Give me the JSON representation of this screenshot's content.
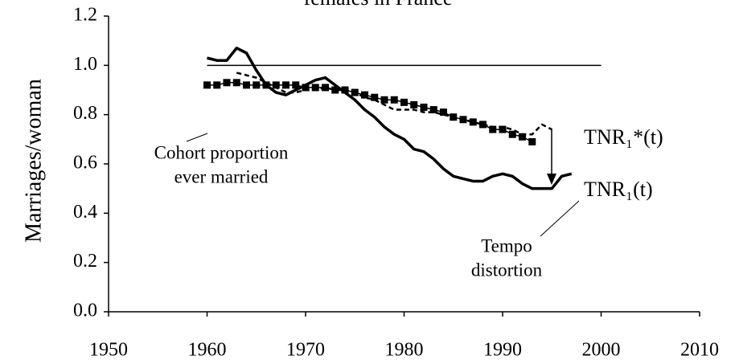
{
  "chart_data": {
    "type": "line",
    "title": "females in France",
    "ylabel": "Marriages/woman",
    "xlim": [
      1950,
      2010
    ],
    "xticks": [
      1950,
      1960,
      1970,
      1980,
      1990,
      2000,
      2010
    ],
    "ylim": [
      0,
      1.2
    ],
    "yticks": [
      {
        "value": 0,
        "label": "0.0"
      },
      0.2,
      0.4,
      0.6,
      0.8,
      {
        "value": 1,
        "label": "1.0"
      },
      1.2
    ],
    "series": [
      {
        "color": "#000000",
        "width": 1.5,
        "x": [
          1960,
          2000
        ],
        "values": [
          1,
          1
        ]
      },
      {
        "name": "TNR₁(t)",
        "color": "#000000",
        "width": 3.5,
        "x": [
          1960,
          1961,
          1962,
          1963,
          1964,
          1965,
          1966,
          1967,
          1968,
          1969,
          1970,
          1971,
          1972,
          1973,
          1974,
          1975,
          1976,
          1977,
          1978,
          1979,
          1980,
          1981,
          1982,
          1983,
          1984,
          1985,
          1986,
          1987,
          1988,
          1989,
          1990,
          1991,
          1992,
          1993,
          1994,
          1995,
          1996,
          1997
        ],
        "values": [
          1.03,
          1.02,
          1.02,
          1.07,
          1.05,
          0.98,
          0.92,
          0.89,
          0.88,
          0.9,
          0.92,
          0.94,
          0.95,
          0.92,
          0.89,
          0.86,
          0.82,
          0.79,
          0.75,
          0.72,
          0.7,
          0.66,
          0.65,
          0.62,
          0.58,
          0.55,
          0.54,
          0.53,
          0.53,
          0.55,
          0.56,
          0.55,
          0.52,
          0.5,
          0.5,
          0.5,
          0.55,
          0.56
        ]
      },
      {
        "name": "TNR₁*(t)",
        "color": "#000000",
        "width": 2.5,
        "dash": true,
        "x": [
          1963,
          1964,
          1965,
          1966,
          1967,
          1968,
          1969,
          1970,
          1971,
          1972,
          1973,
          1974,
          1975,
          1976,
          1977,
          1978,
          1979,
          1980,
          1981,
          1982,
          1983,
          1984,
          1985,
          1986,
          1987,
          1988,
          1989,
          1990,
          1991,
          1992,
          1993,
          1994,
          1995
        ],
        "values": [
          0.97,
          0.96,
          0.95,
          0.93,
          0.91,
          0.89,
          0.89,
          0.9,
          0.9,
          0.91,
          0.9,
          0.9,
          0.89,
          0.87,
          0.86,
          0.84,
          0.82,
          0.82,
          0.82,
          0.81,
          0.81,
          0.8,
          0.79,
          0.78,
          0.77,
          0.76,
          0.75,
          0.75,
          0.74,
          0.72,
          0.72,
          0.76,
          0.74
        ]
      },
      {
        "color": "#000000",
        "width": 1.5,
        "marker": "square",
        "x": [
          1960,
          1961,
          1962,
          1963,
          1964,
          1965,
          1966,
          1967,
          1968,
          1969,
          1970,
          1971,
          1972,
          1973,
          1974,
          1975,
          1976,
          1977,
          1978,
          1979,
          1980,
          1981,
          1982,
          1983,
          1984,
          1985,
          1986,
          1987,
          1988,
          1989,
          1990,
          1991,
          1992,
          1993
        ],
        "values": [
          0.92,
          0.92,
          0.93,
          0.93,
          0.92,
          0.92,
          0.92,
          0.92,
          0.92,
          0.92,
          0.91,
          0.91,
          0.91,
          0.9,
          0.9,
          0.89,
          0.88,
          0.87,
          0.86,
          0.86,
          0.85,
          0.84,
          0.83,
          0.82,
          0.81,
          0.79,
          0.78,
          0.77,
          0.76,
          0.74,
          0.74,
          0.72,
          0.71,
          0.69
        ]
      }
    ],
    "annotations": [
      {
        "lines": [
          "Cohort proportion",
          "ever married"
        ]
      },
      {
        "lines": [
          "Tempo",
          "distortion"
        ]
      }
    ]
  }
}
